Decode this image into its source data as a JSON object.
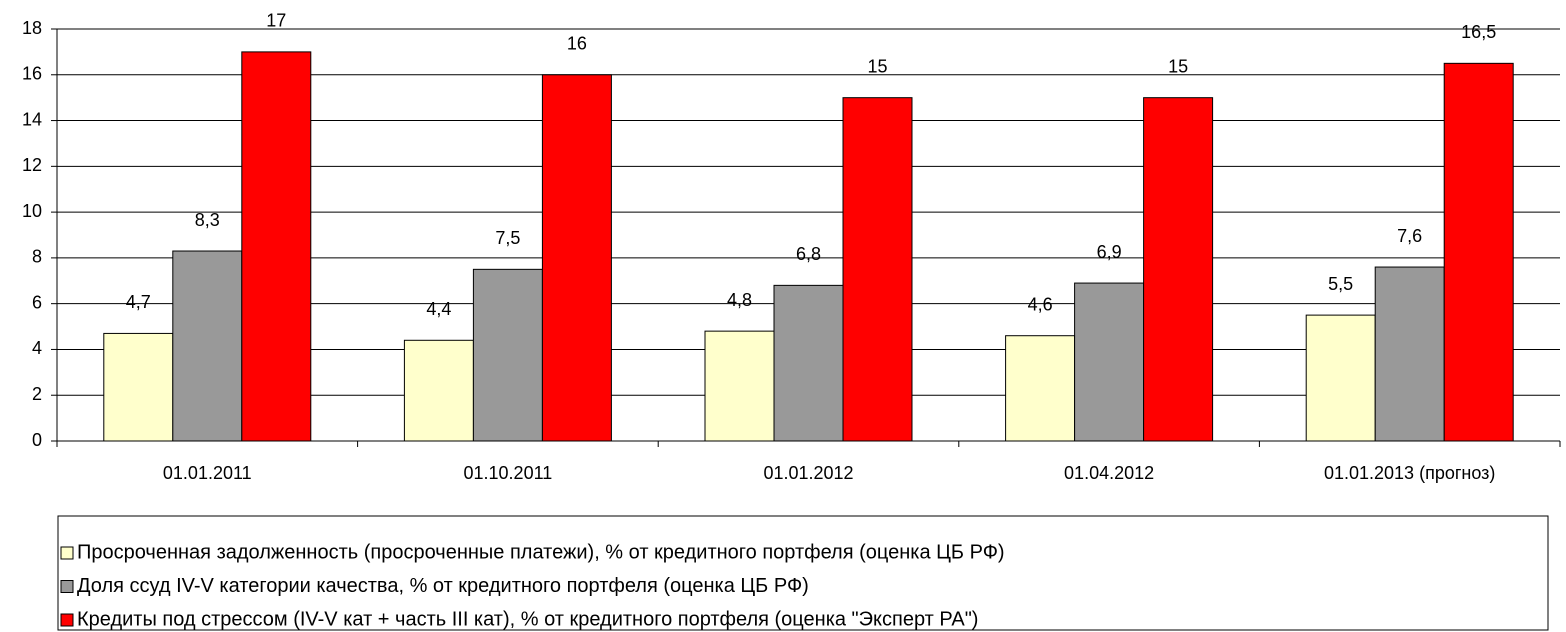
{
  "chart_data": {
    "type": "bar",
    "categories": [
      "01.01.2011",
      "01.10.2011",
      "01.01.2012",
      "01.04.2012",
      "01.01.2013 (прогноз)"
    ],
    "series": [
      {
        "name": "Просроченная задолженность (просроченные платежи), % от кредитного портфеля (оценка ЦБ РФ)",
        "color": "#ffffcc",
        "values": [
          4.7,
          4.4,
          4.8,
          4.6,
          5.5
        ],
        "value_labels": [
          "4,7",
          "4,4",
          "4,8",
          "4,6",
          "5,5"
        ]
      },
      {
        "name": "Доля ссуд IV-V категории качества, % от кредитного портфеля (оценка ЦБ РФ)",
        "color": "#999999",
        "values": [
          8.3,
          7.5,
          6.8,
          6.9,
          7.6
        ],
        "value_labels": [
          "8,3",
          "7,5",
          "6,8",
          "6,9",
          "7,6"
        ]
      },
      {
        "name": "Кредиты под стрессом (IV-V кат + часть III кат), % от кредитного портфеля (оценка \"Эксперт РА\")",
        "color": "#ff0000",
        "values": [
          17,
          16,
          15,
          15,
          16.5
        ],
        "value_labels": [
          "17",
          "16",
          "15",
          "15",
          "16,5"
        ]
      }
    ],
    "ylim": [
      0,
      18
    ],
    "yticks": [
      0,
      2,
      4,
      6,
      8,
      10,
      12,
      14,
      16,
      18
    ],
    "grid": true,
    "legend": "bottom"
  }
}
